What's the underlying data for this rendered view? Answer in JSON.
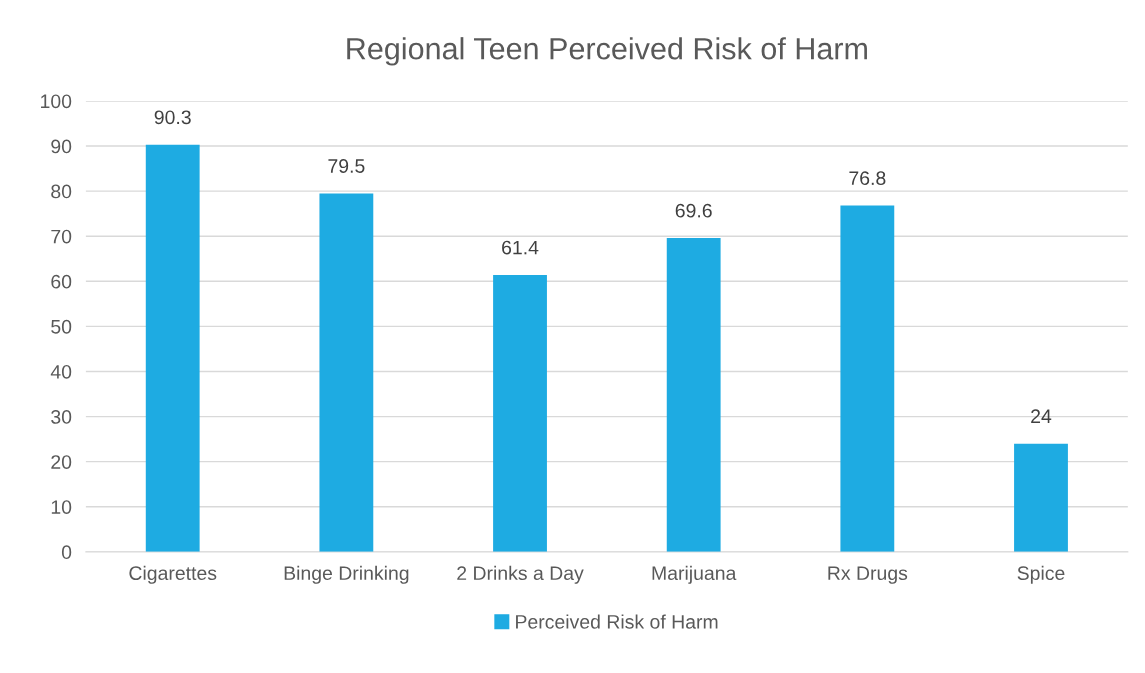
{
  "chart_data": {
    "type": "bar",
    "title": "Regional Teen Perceived Risk of Harm",
    "categories": [
      "Cigarettes",
      "Binge Drinking",
      "2 Drinks a Day",
      "Marijuana",
      "Rx Drugs",
      "Spice"
    ],
    "series": [
      {
        "name": "Perceived Risk of Harm",
        "color": "#1eabe2",
        "values": [
          90.3,
          79.5,
          61.4,
          69.6,
          76.8,
          24
        ]
      }
    ],
    "ylim": [
      0,
      100
    ],
    "yticks": [
      0,
      10,
      20,
      30,
      40,
      50,
      60,
      70,
      80,
      90,
      100
    ],
    "grid": "y",
    "legend": "bottom",
    "data_labels": true
  }
}
